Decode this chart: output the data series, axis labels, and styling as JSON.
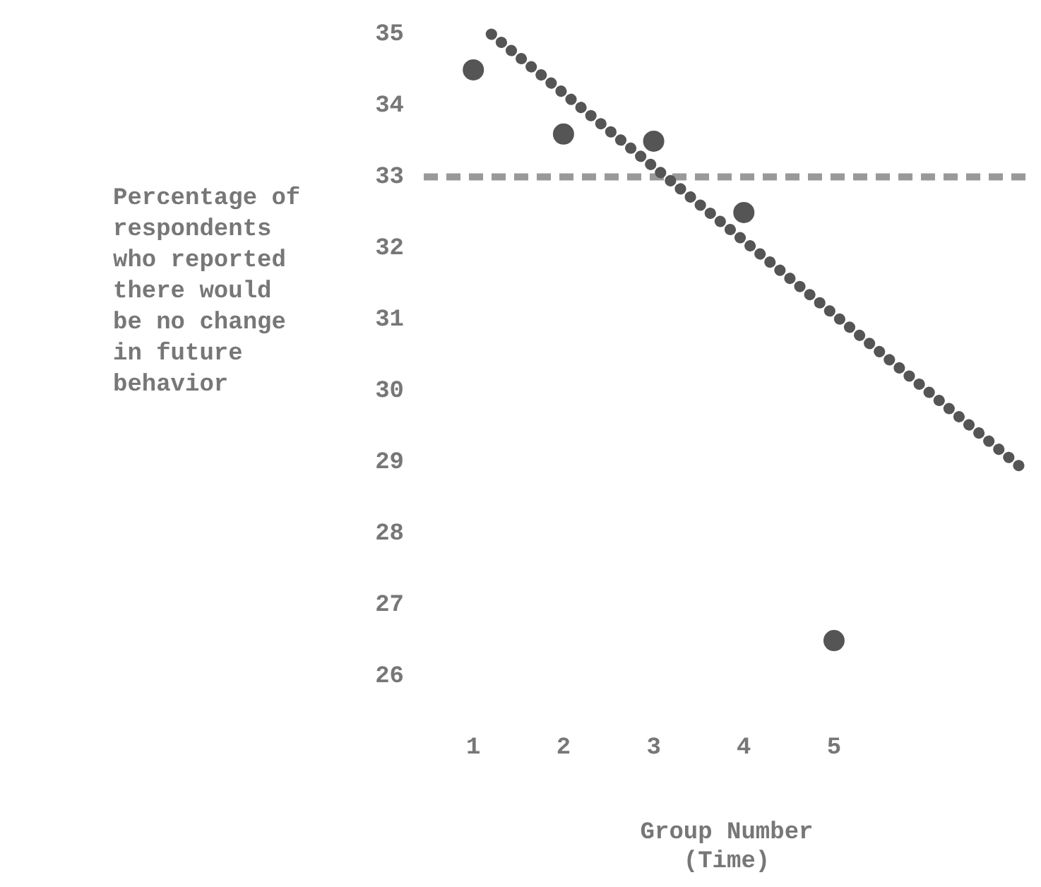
{
  "chart_data": {
    "type": "scatter",
    "xlabel": "Group Number\n(Time)",
    "ylabel": "Percentage of respondents who reported there would be no change in future behavior",
    "x": [
      1,
      2,
      3,
      4,
      5
    ],
    "series": [
      {
        "color": "#555555",
        "values": [
          34.5,
          33.6,
          33.5,
          32.5,
          26.5
        ],
        "marker": "circle"
      },
      {
        "type": "line",
        "color": "#555555",
        "x": [
          1.2,
          7.1
        ],
        "values": [
          35,
          28.9
        ],
        "line_style": "dotted",
        "marker": "none"
      }
    ],
    "xlim": [
      0.45,
      7.17
    ],
    "xticks": [
      1,
      2,
      3,
      4,
      5
    ],
    "ylim": [
      26,
      35
    ],
    "yticks": [
      26,
      27,
      28,
      29,
      30,
      31,
      32,
      33,
      34,
      35
    ],
    "ref_lines": [
      {
        "axis": "y",
        "value": 33,
        "color": "#999999",
        "line_style": "dashed"
      }
    ],
    "grid": false,
    "legend": false
  }
}
